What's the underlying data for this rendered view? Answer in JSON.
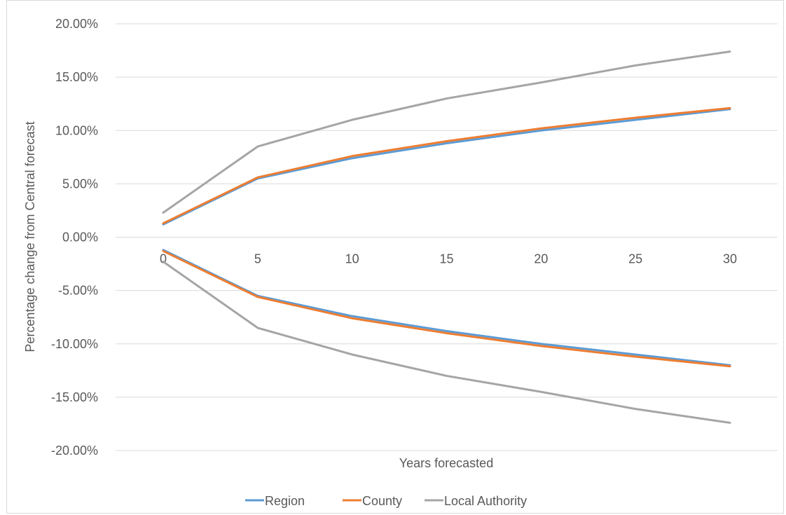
{
  "chart_data": {
    "type": "line",
    "title": "",
    "xlabel": "Years forecasted",
    "ylabel": "Percentage change from Central forecast",
    "x": [
      0,
      5,
      10,
      15,
      20,
      25,
      30
    ],
    "x_tick_labels": [
      "0",
      "5",
      "10",
      "15",
      "20",
      "25",
      "30"
    ],
    "ylim": [
      -0.2,
      0.2
    ],
    "y_tick_values": [
      0.2,
      0.15,
      0.1,
      0.05,
      0.0,
      -0.05,
      -0.1,
      -0.15,
      -0.2
    ],
    "y_tick_labels": [
      "20.00%",
      "15.00%",
      "10.00%",
      "5.00%",
      "0.00%",
      "-5.00%",
      "-10.00%",
      "-15.00%",
      "-20.00%"
    ],
    "grid": true,
    "legend_position": "bottom",
    "series": [
      {
        "name": "Region",
        "color": "#5b9bd5",
        "values": [
          0.012,
          0.055,
          0.074,
          0.088,
          0.1,
          0.11,
          0.12
        ]
      },
      {
        "name": "County",
        "color": "#ed7d31",
        "values": [
          0.013,
          0.056,
          0.076,
          0.09,
          0.102,
          0.112,
          0.121
        ]
      },
      {
        "name": "Local Authority",
        "color": "#a5a5a5",
        "values": [
          0.023,
          0.085,
          0.11,
          0.13,
          0.145,
          0.161,
          0.174
        ]
      },
      {
        "name": "Region",
        "color": "#5b9bd5",
        "values": [
          -0.012,
          -0.055,
          -0.074,
          -0.088,
          -0.1,
          -0.11,
          -0.12
        ]
      },
      {
        "name": "County",
        "color": "#ed7d31",
        "values": [
          -0.013,
          -0.056,
          -0.076,
          -0.09,
          -0.102,
          -0.112,
          -0.121
        ]
      },
      {
        "name": "Local Authority",
        "color": "#a5a5a5",
        "values": [
          -0.023,
          -0.085,
          -0.11,
          -0.13,
          -0.145,
          -0.161,
          -0.174
        ]
      }
    ],
    "legend": [
      {
        "name": "Region",
        "color": "#5b9bd5"
      },
      {
        "name": "County",
        "color": "#ed7d31"
      },
      {
        "name": "Local Authority",
        "color": "#a5a5a5"
      }
    ]
  }
}
